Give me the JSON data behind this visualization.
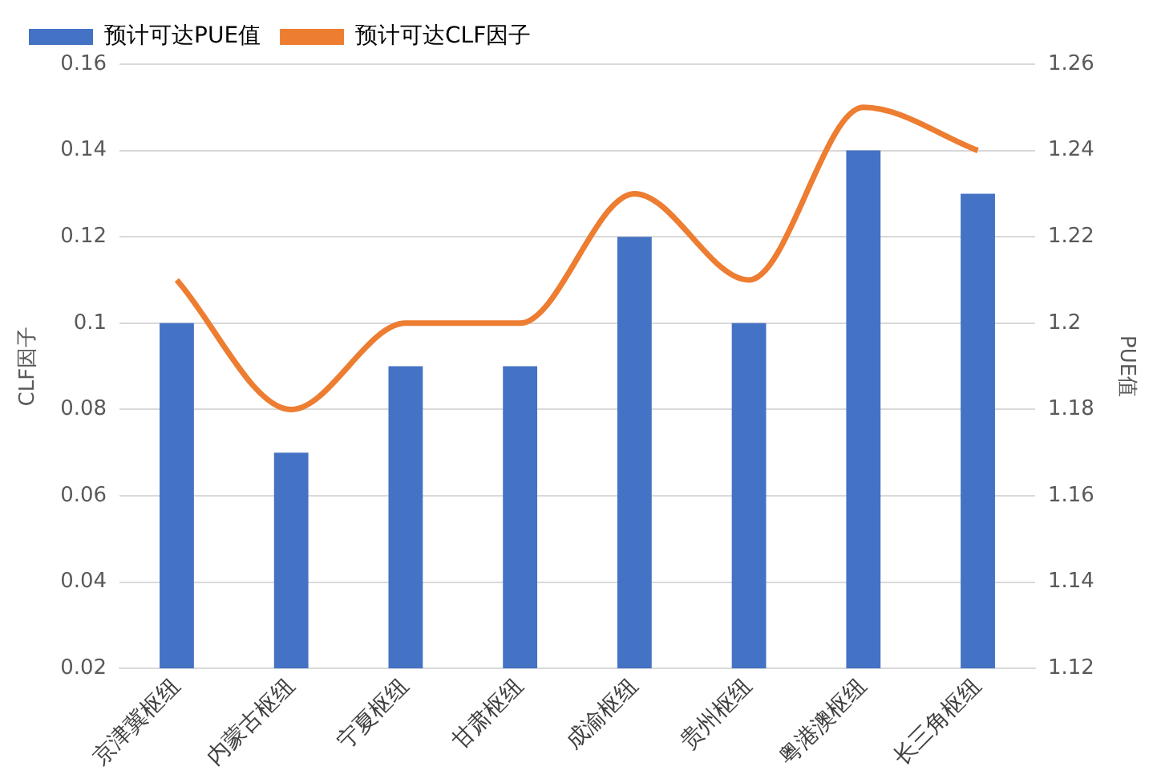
{
  "chart_data": {
    "type": "bar",
    "ylabel": "CLF因子",
    "y2label": "PUE值",
    "categories": [
      "京津冀枢纽",
      "内蒙古枢纽",
      "宁夏枢纽",
      "甘肃枢纽",
      "成渝枢纽",
      "贵州枢纽",
      "粤港澳枢纽",
      "长三角枢纽"
    ],
    "series": [
      {
        "name": "预计可达PUE值",
        "axis": "y2",
        "color": "#4472c4",
        "values": [
          1.2,
          1.17,
          1.19,
          1.19,
          1.22,
          1.2,
          1.24,
          1.23
        ]
      },
      {
        "name": "预计可达CLF因子",
        "type": "line",
        "axis": "y",
        "color": "#ed7d31",
        "values": [
          0.11,
          0.08,
          0.1,
          0.1,
          0.13,
          0.11,
          0.15,
          0.14
        ]
      }
    ],
    "ylim": [
      0.02,
      0.16
    ],
    "yticks": [
      {
        "value": 0.02,
        "label": "0.02"
      },
      {
        "value": 0.04,
        "label": "0.04"
      },
      {
        "value": 0.06,
        "label": "0.06"
      },
      {
        "value": 0.08,
        "label": "0.08"
      },
      {
        "value": 0.1,
        "label": "0.1"
      },
      {
        "value": 0.12,
        "label": "0.12"
      },
      {
        "value": 0.14,
        "label": "0.14"
      },
      {
        "value": 0.16,
        "label": "0.16"
      }
    ],
    "y2lim": [
      1.12,
      1.26
    ],
    "y2ticks": [
      {
        "value": 1.12,
        "label": "1.12"
      },
      {
        "value": 1.14,
        "label": "1.14"
      },
      {
        "value": 1.16,
        "label": "1.16"
      },
      {
        "value": 1.18,
        "label": "1.18"
      },
      {
        "value": 1.2,
        "label": "1.2"
      },
      {
        "value": 1.22,
        "label": "1.22"
      },
      {
        "value": 1.24,
        "label": "1.24"
      },
      {
        "value": 1.26,
        "label": "1.26"
      }
    ],
    "grid": "y",
    "legend": "top left",
    "marker": "none",
    "line_style": "solid"
  }
}
